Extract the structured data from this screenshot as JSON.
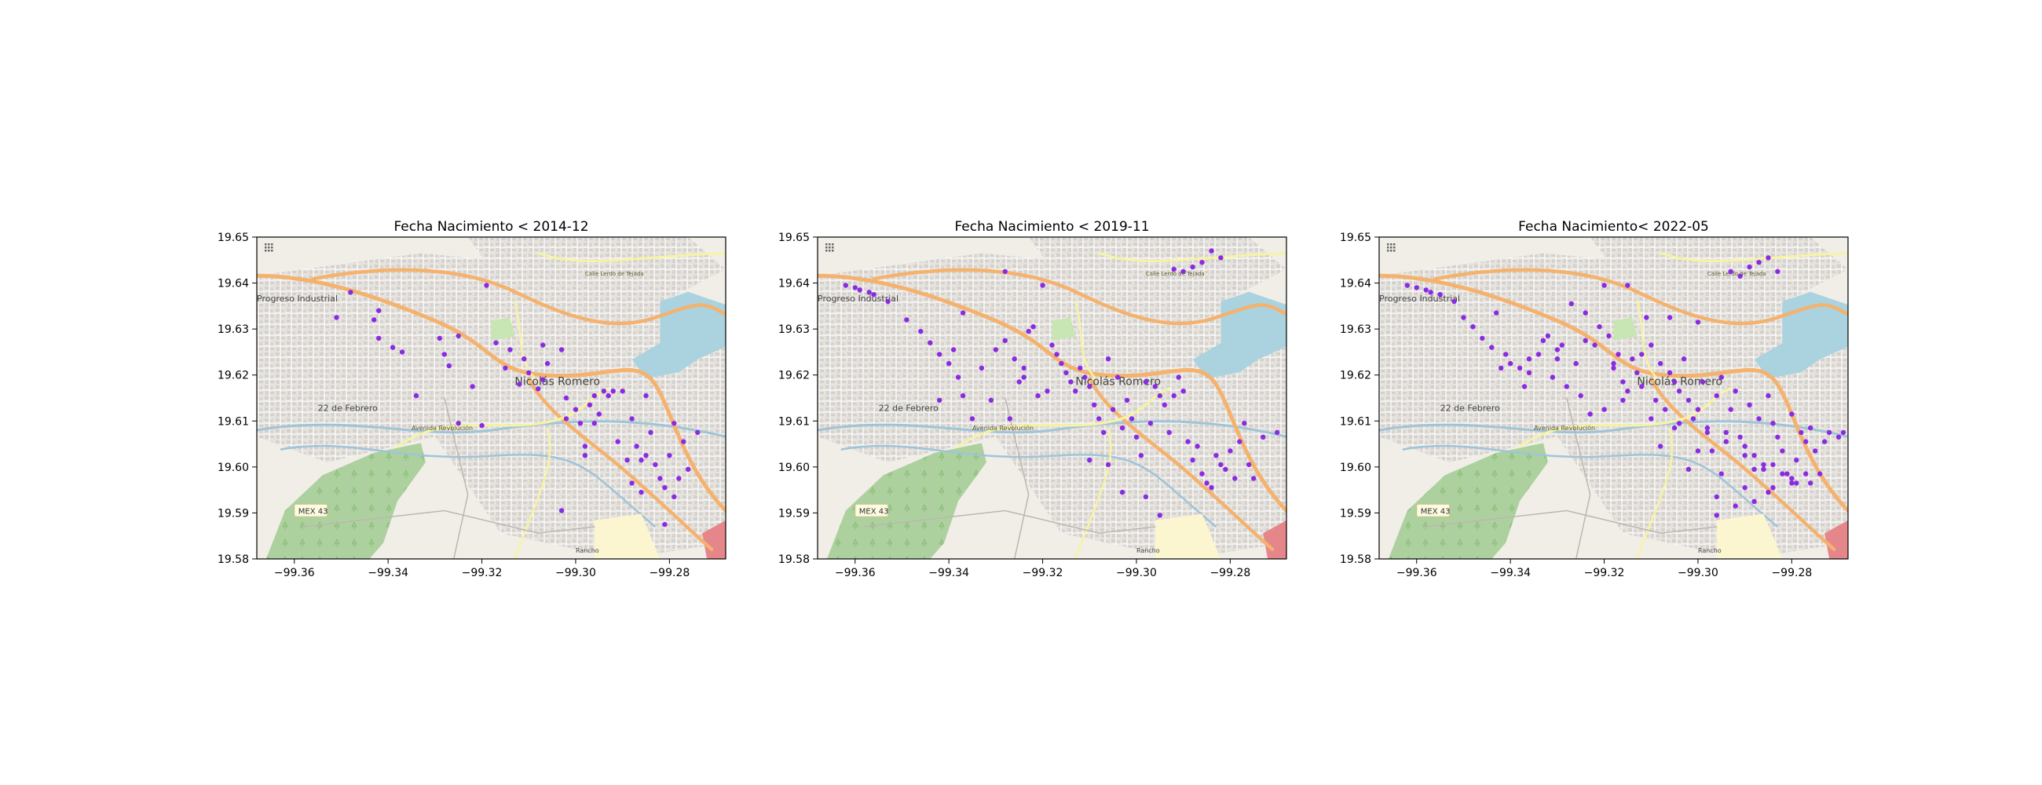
{
  "figure": {
    "background_color": "#ffffff",
    "point_color": "#8a2be2"
  },
  "map_labels": {
    "progreso": "Progreso Industrial",
    "nicolas": "Nicolás Romero",
    "febrero": "22 de Febrero",
    "avenida": "Avenida Revolución",
    "mex43": "MEX 43",
    "calle": "Calle Lerdo de Tejada",
    "rancho": "Rancho"
  },
  "chart_data": [
    {
      "type": "scatter",
      "title": "Fecha Nacimiento < 2014-12",
      "xlim": [
        -99.368,
        -99.268
      ],
      "ylim": [
        19.58,
        19.65
      ],
      "xticks": [
        -99.36,
        -99.34,
        -99.32,
        -99.3,
        -99.28
      ],
      "xtick_labels": [
        "−99.36",
        "−99.34",
        "−99.32",
        "−99.30",
        "−99.28"
      ],
      "yticks": [
        19.58,
        19.59,
        19.6,
        19.61,
        19.62,
        19.63,
        19.64,
        19.65
      ],
      "ytick_labels": [
        "19.58",
        "19.59",
        "19.60",
        "19.61",
        "19.62",
        "19.63",
        "19.64",
        "19.65"
      ],
      "grid": false,
      "points": {
        "x": [
          -99.348,
          -99.351,
          -99.343,
          -99.342,
          -99.339,
          -99.337,
          -99.342,
          -99.334,
          -99.329,
          -99.328,
          -99.327,
          -99.325,
          -99.325,
          -99.322,
          -99.32,
          -99.319,
          -99.317,
          -99.315,
          -99.314,
          -99.312,
          -99.311,
          -99.31,
          -99.308,
          -99.307,
          -99.306,
          -99.307,
          -99.303,
          -99.302,
          -99.302,
          -99.3,
          -99.299,
          -99.298,
          -99.297,
          -99.296,
          -99.295,
          -99.294,
          -99.293,
          -99.292,
          -99.291,
          -99.29,
          -99.289,
          -99.288,
          -99.287,
          -99.286,
          -99.285,
          -99.284,
          -99.283,
          -99.282,
          -99.281,
          -99.28,
          -99.279,
          -99.278,
          -99.277,
          -99.276,
          -99.274,
          -99.285,
          -99.288,
          -99.296,
          -99.298,
          -99.303,
          -99.286,
          -99.281,
          -99.279
        ],
        "y": [
          19.638,
          19.6325,
          19.632,
          19.634,
          19.626,
          19.625,
          19.628,
          19.6155,
          19.628,
          19.6245,
          19.622,
          19.6285,
          19.6095,
          19.6175,
          19.609,
          19.6395,
          19.627,
          19.6215,
          19.6255,
          19.618,
          19.6235,
          19.6205,
          19.617,
          19.619,
          19.6225,
          19.6265,
          19.6255,
          19.615,
          19.6105,
          19.6125,
          19.6095,
          19.6025,
          19.6135,
          19.6155,
          19.6115,
          19.6165,
          19.6155,
          19.6165,
          19.6055,
          19.6165,
          19.6015,
          19.6105,
          19.6045,
          19.6015,
          19.6155,
          19.6075,
          19.6005,
          19.5975,
          19.5955,
          19.6025,
          19.6095,
          19.5975,
          19.6055,
          19.5995,
          19.6075,
          19.6025,
          19.5965,
          19.6095,
          19.6045,
          19.5905,
          19.5945,
          19.5875,
          19.5935
        ]
      }
    },
    {
      "type": "scatter",
      "title": "Fecha Nacimiento < 2019-11",
      "xlim": [
        -99.368,
        -99.268
      ],
      "ylim": [
        19.58,
        19.65
      ],
      "xticks": [
        -99.36,
        -99.34,
        -99.32,
        -99.3,
        -99.28
      ],
      "xtick_labels": [
        "−99.36",
        "−99.34",
        "−99.32",
        "−99.30",
        "−99.28"
      ],
      "yticks": [
        19.58,
        19.59,
        19.6,
        19.61,
        19.62,
        19.63,
        19.64,
        19.65
      ],
      "ytick_labels": [
        "19.58",
        "19.59",
        "19.60",
        "19.61",
        "19.62",
        "19.63",
        "19.64",
        "19.65"
      ],
      "grid": false,
      "points": {
        "x": [
          -99.362,
          -99.36,
          -99.359,
          -99.357,
          -99.356,
          -99.353,
          -99.349,
          -99.346,
          -99.344,
          -99.342,
          -99.34,
          -99.338,
          -99.337,
          -99.335,
          -99.333,
          -99.331,
          -99.33,
          -99.328,
          -99.327,
          -99.326,
          -99.325,
          -99.324,
          -99.323,
          -99.322,
          -99.321,
          -99.32,
          -99.319,
          -99.318,
          -99.317,
          -99.316,
          -99.315,
          -99.314,
          -99.313,
          -99.312,
          -99.311,
          -99.31,
          -99.309,
          -99.308,
          -99.307,
          -99.306,
          -99.305,
          -99.304,
          -99.303,
          -99.302,
          -99.301,
          -99.3,
          -99.299,
          -99.298,
          -99.297,
          -99.296,
          -99.295,
          -99.294,
          -99.293,
          -99.292,
          -99.291,
          -99.29,
          -99.289,
          -99.288,
          -99.287,
          -99.286,
          -99.285,
          -99.284,
          -99.283,
          -99.282,
          -99.281,
          -99.28,
          -99.279,
          -99.278,
          -99.277,
          -99.276,
          -99.275,
          -99.273,
          -99.27,
          -99.292,
          -99.29,
          -99.288,
          -99.286,
          -99.284,
          -99.282,
          -99.337,
          -99.339,
          -99.328,
          -99.324,
          -99.342,
          -99.31,
          -99.306,
          -99.303,
          -99.298,
          -99.295
        ],
        "y": [
          19.6395,
          19.639,
          19.6385,
          19.638,
          19.6375,
          19.636,
          19.632,
          19.6295,
          19.627,
          19.6245,
          19.6225,
          19.6195,
          19.6155,
          19.6105,
          19.6215,
          19.6145,
          19.6255,
          19.6275,
          19.6105,
          19.6235,
          19.6185,
          19.6215,
          19.6295,
          19.6305,
          19.6155,
          19.6395,
          19.6165,
          19.6265,
          19.6245,
          19.6225,
          19.6205,
          19.6185,
          19.6165,
          19.6215,
          19.6195,
          19.6175,
          19.6135,
          19.6105,
          19.6075,
          19.6235,
          19.6125,
          19.6195,
          19.6085,
          19.6145,
          19.6105,
          19.6065,
          19.6025,
          19.6185,
          19.6095,
          19.6175,
          19.6155,
          19.6135,
          19.6075,
          19.6155,
          19.6195,
          19.6165,
          19.6055,
          19.6015,
          19.6045,
          19.5985,
          19.5965,
          19.5955,
          19.6025,
          19.6005,
          19.5995,
          19.6035,
          19.5975,
          19.6055,
          19.6095,
          19.6005,
          19.5975,
          19.6065,
          19.6075,
          19.643,
          19.6425,
          19.6435,
          19.6445,
          19.647,
          19.6455,
          19.6335,
          19.6255,
          19.6425,
          19.6195,
          19.6145,
          19.6015,
          19.6005,
          19.5945,
          19.5935,
          19.5895
        ]
      }
    },
    {
      "type": "scatter",
      "title": "Fecha Nacimiento< 2022-05",
      "xlim": [
        -99.368,
        -99.268
      ],
      "ylim": [
        19.58,
        19.65
      ],
      "xticks": [
        -99.36,
        -99.34,
        -99.32,
        -99.3,
        -99.28
      ],
      "xtick_labels": [
        "−99.36",
        "−99.34",
        "−99.32",
        "−99.30",
        "−99.28"
      ],
      "yticks": [
        19.58,
        19.59,
        19.6,
        19.61,
        19.62,
        19.63,
        19.64,
        19.65
      ],
      "ytick_labels": [
        "19.58",
        "19.59",
        "19.60",
        "19.61",
        "19.62",
        "19.63",
        "19.64",
        "19.65"
      ],
      "grid": false,
      "points": {
        "x": [
          -99.362,
          -99.36,
          -99.358,
          -99.357,
          -99.355,
          -99.352,
          -99.35,
          -99.348,
          -99.346,
          -99.344,
          -99.343,
          -99.341,
          -99.34,
          -99.338,
          -99.337,
          -99.336,
          -99.334,
          -99.333,
          -99.332,
          -99.331,
          -99.33,
          -99.329,
          -99.328,
          -99.327,
          -99.326,
          -99.325,
          -99.324,
          -99.323,
          -99.322,
          -99.321,
          -99.32,
          -99.319,
          -99.318,
          -99.317,
          -99.316,
          -99.315,
          -99.314,
          -99.313,
          -99.312,
          -99.311,
          -99.31,
          -99.309,
          -99.308,
          -99.307,
          -99.306,
          -99.305,
          -99.304,
          -99.303,
          -99.302,
          -99.301,
          -99.3,
          -99.299,
          -99.298,
          -99.297,
          -99.296,
          -99.295,
          -99.294,
          -99.293,
          -99.292,
          -99.291,
          -99.29,
          -99.289,
          -99.288,
          -99.287,
          -99.286,
          -99.285,
          -99.284,
          -99.283,
          -99.282,
          -99.281,
          -99.28,
          -99.279,
          -99.278,
          -99.277,
          -99.276,
          -99.275,
          -99.274,
          -99.273,
          -99.272,
          -99.27,
          -99.269,
          -99.293,
          -99.291,
          -99.289,
          -99.287,
          -99.285,
          -99.283,
          -99.3,
          -99.306,
          -99.312,
          -99.318,
          -99.324,
          -99.33,
          -99.336,
          -99.342,
          -99.315,
          -99.31,
          -99.305,
          -99.3,
          -99.295,
          -99.29,
          -99.285,
          -99.28,
          -99.296,
          -99.292,
          -99.288,
          -99.284,
          -99.28,
          -99.276,
          -99.302,
          -99.298,
          -99.294,
          -99.29,
          -99.286,
          -99.282,
          -99.32,
          -99.316,
          -99.308,
          -99.304,
          -99.296,
          -99.288,
          -99.284,
          -99.279,
          -99.277
        ],
        "y": [
          19.6395,
          19.639,
          19.6385,
          19.638,
          19.6375,
          19.636,
          19.6325,
          19.6305,
          19.628,
          19.626,
          19.6335,
          19.6245,
          19.6225,
          19.6215,
          19.6175,
          19.6205,
          19.6245,
          19.6275,
          19.6285,
          19.6195,
          19.6235,
          19.6265,
          19.6175,
          19.6355,
          19.6225,
          19.6155,
          19.6335,
          19.6115,
          19.6265,
          19.6305,
          19.6395,
          19.6285,
          19.6215,
          19.6245,
          19.6185,
          19.6165,
          19.6235,
          19.6205,
          19.6175,
          19.6325,
          19.6265,
          19.6145,
          19.6225,
          19.6125,
          19.6205,
          19.6185,
          19.6165,
          19.6235,
          19.6145,
          19.6105,
          19.6125,
          19.6185,
          19.6085,
          19.6035,
          19.6155,
          19.6195,
          19.6075,
          19.6125,
          19.6165,
          19.6065,
          19.6045,
          19.6135,
          19.6025,
          19.6105,
          19.5995,
          19.6155,
          19.6095,
          19.6065,
          19.6035,
          19.5985,
          19.6115,
          19.6015,
          19.6075,
          19.6055,
          19.6085,
          19.6035,
          19.5985,
          19.6055,
          19.6075,
          19.6065,
          19.6075,
          19.6425,
          19.6415,
          19.6435,
          19.6445,
          19.6455,
          19.6425,
          19.6315,
          19.6325,
          19.6245,
          19.6225,
          19.6275,
          19.6255,
          19.6235,
          19.6215,
          19.6395,
          19.6105,
          19.6085,
          19.6035,
          19.5985,
          19.5955,
          19.5945,
          19.5965,
          19.5935,
          19.5915,
          19.5995,
          19.6005,
          19.5975,
          19.5965,
          19.5995,
          19.6075,
          19.6055,
          19.6025,
          19.6005,
          19.5985,
          19.6125,
          19.6145,
          19.6045,
          19.6095,
          19.5895,
          19.5925,
          19.5955,
          19.5965,
          19.5985
        ]
      }
    }
  ]
}
